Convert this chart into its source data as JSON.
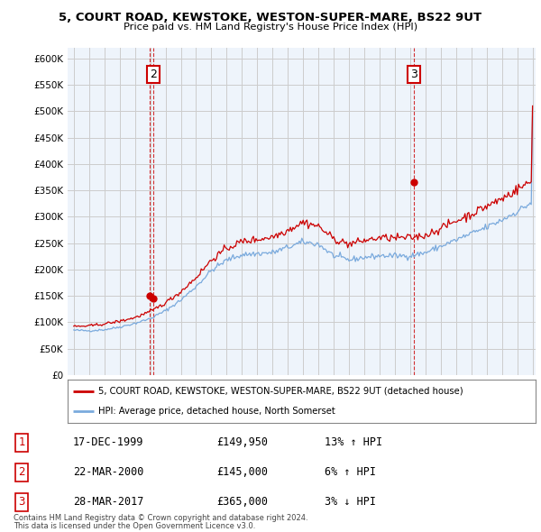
{
  "title": "5, COURT ROAD, KEWSTOKE, WESTON-SUPER-MARE, BS22 9UT",
  "subtitle": "Price paid vs. HM Land Registry's House Price Index (HPI)",
  "legend_label_red": "5, COURT ROAD, KEWSTOKE, WESTON-SUPER-MARE, BS22 9UT (detached house)",
  "legend_label_blue": "HPI: Average price, detached house, North Somerset",
  "footer_line1": "Contains HM Land Registry data © Crown copyright and database right 2024.",
  "footer_line2": "This data is licensed under the Open Government Licence v3.0.",
  "sales": [
    {
      "num": 1,
      "date": "17-DEC-1999",
      "price": "£149,950",
      "pct": "13%",
      "dir": "↑",
      "show_label": false
    },
    {
      "num": 2,
      "date": "22-MAR-2000",
      "price": "£145,000",
      "pct": "6%",
      "dir": "↑",
      "show_label": true
    },
    {
      "num": 3,
      "date": "28-MAR-2017",
      "price": "£365,000",
      "pct": "3%",
      "dir": "↓",
      "show_label": true
    }
  ],
  "red_color": "#cc0000",
  "blue_color": "#7aaadd",
  "blue_fill": "#ddeeff",
  "sale_marker_color": "#cc0000",
  "ylim": [
    0,
    620000
  ],
  "yticks": [
    0,
    50000,
    100000,
    150000,
    200000,
    250000,
    300000,
    350000,
    400000,
    450000,
    500000,
    550000,
    600000
  ],
  "background_color": "#ffffff",
  "chart_bg_color": "#eef4fb",
  "grid_color": "#cccccc",
  "sale_points": [
    {
      "year": 1999.96,
      "price": 149950,
      "label": "1",
      "show": false
    },
    {
      "year": 2000.22,
      "price": 145000,
      "label": "2",
      "show": true
    },
    {
      "year": 2017.23,
      "price": 365000,
      "label": "3",
      "show": true
    }
  ]
}
